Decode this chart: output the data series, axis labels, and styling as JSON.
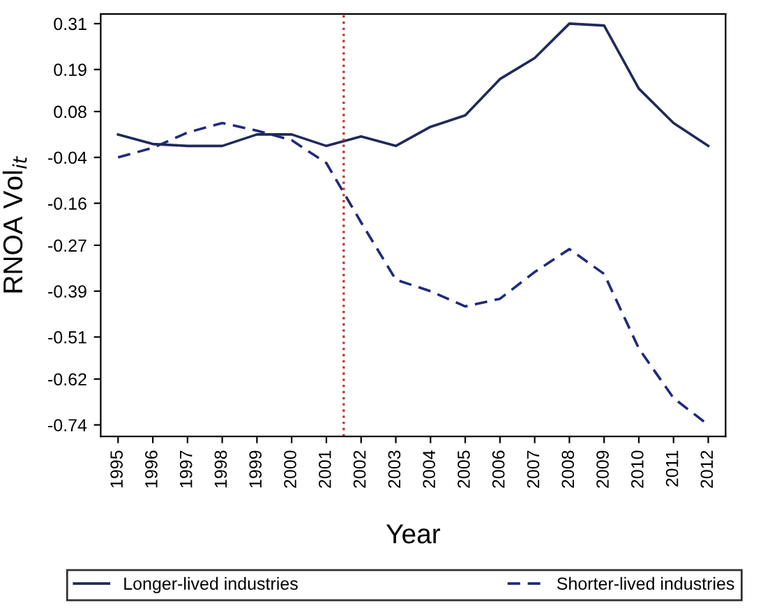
{
  "chart_data": {
    "type": "line",
    "xlabel": "Year",
    "ylabel": "RNOA Vol$_{it}$",
    "x": [
      1995,
      1996,
      1997,
      1998,
      1999,
      2000,
      2001,
      2002,
      2003,
      2004,
      2005,
      2006,
      2007,
      2008,
      2009,
      2010,
      2011,
      2012
    ],
    "series": [
      {
        "name": "Longer-lived industries",
        "color": "#1f2a5a",
        "line_style": "solid",
        "values": [
          0.02,
          -0.005,
          -0.01,
          -0.01,
          0.02,
          0.02,
          -0.01,
          0.015,
          -0.01,
          0.04,
          0.07,
          0.165,
          0.22,
          0.31,
          0.305,
          0.14,
          0.05,
          -0.01
        ]
      },
      {
        "name": "Shorter-lived industries",
        "color": "#1f2a7a",
        "line_style": "dashed",
        "values": [
          -0.04,
          -0.015,
          0.025,
          0.05,
          0.03,
          0.005,
          -0.055,
          -0.21,
          -0.36,
          -0.39,
          -0.43,
          -0.41,
          -0.34,
          -0.28,
          -0.345,
          -0.54,
          -0.67,
          -0.74
        ]
      }
    ],
    "xlim": [
      1994.5,
      2012.5
    ],
    "xticks": [
      1995,
      1996,
      1997,
      1998,
      1999,
      2000,
      2001,
      2002,
      2003,
      2004,
      2005,
      2006,
      2007,
      2008,
      2009,
      2010,
      2011,
      2012
    ],
    "ylim": [
      -0.77,
      0.335
    ],
    "yticks": [
      0.31,
      0.19,
      0.08,
      -0.04,
      -0.16,
      -0.27,
      -0.39,
      -0.51,
      -0.62,
      -0.74
    ],
    "ref_lines": [
      {
        "axis": "x",
        "value": 2001.5,
        "color": "#c0392b",
        "line_style": "dotted"
      }
    ],
    "grid": false,
    "legend": "bottom",
    "marker": "none"
  }
}
